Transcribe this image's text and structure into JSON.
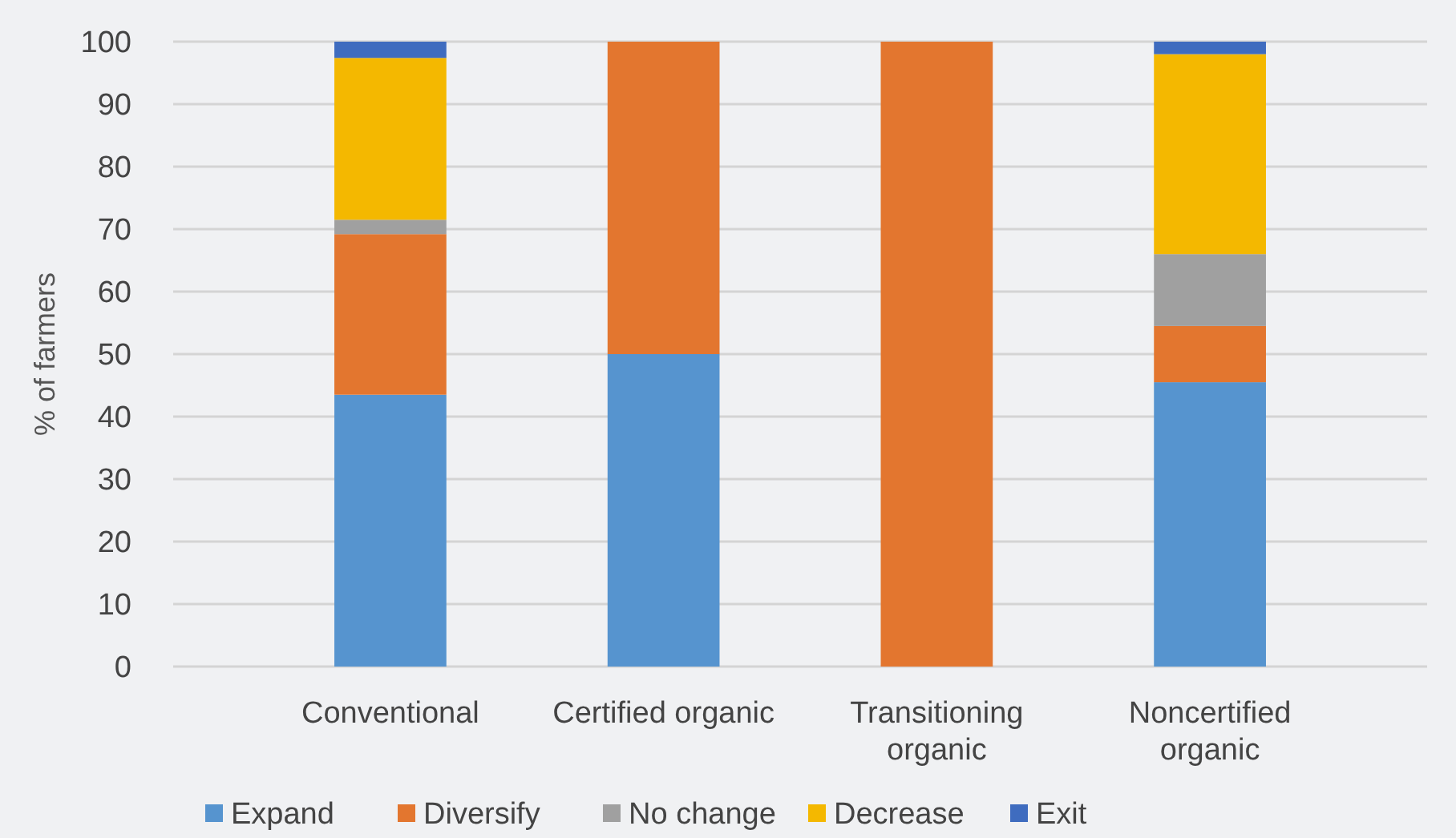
{
  "chart_data": {
    "type": "bar",
    "stacked": true,
    "ylabel": "% of farmers",
    "categories": [
      "Conventional",
      "Certified organic",
      "Transitioning organic",
      "Noncertified organic"
    ],
    "series": [
      {
        "name": "Expand",
        "color": "#5694cf",
        "values": [
          43.5,
          50,
          0,
          45.5
        ]
      },
      {
        "name": "Diversify",
        "color": "#e3762f",
        "values": [
          25.7,
          50,
          100,
          9
        ]
      },
      {
        "name": "No change",
        "color": "#a0a0a0",
        "values": [
          2.3,
          0,
          0,
          11.5
        ]
      },
      {
        "name": "Decrease",
        "color": "#f4b800",
        "values": [
          25.9,
          0,
          0,
          32
        ]
      },
      {
        "name": "Exit",
        "color": "#3f6cbf",
        "values": [
          2.6,
          0,
          0,
          2
        ]
      }
    ],
    "ylim": [
      0,
      100
    ],
    "yticks": [
      0,
      10,
      20,
      30,
      40,
      50,
      60,
      70,
      80,
      90,
      100
    ],
    "grid": "y",
    "legend": "bottom"
  }
}
